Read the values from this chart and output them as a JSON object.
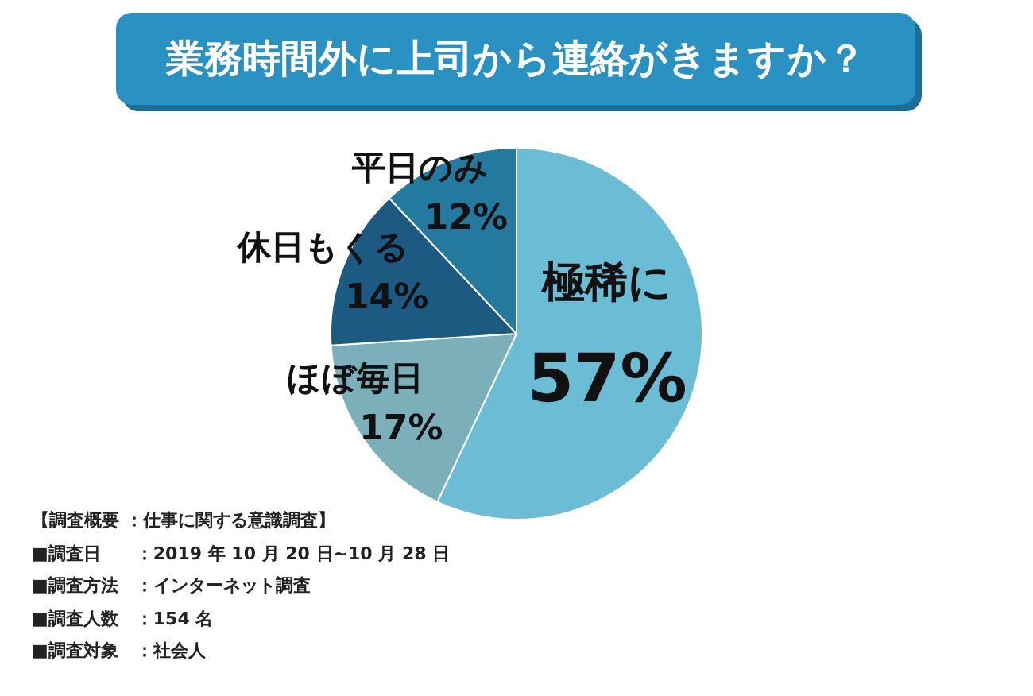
{
  "chart_data": {
    "type": "pie",
    "title": "業務時間外に上司から連絡がきますか？",
    "categories": [
      "極稀に",
      "ほぼ毎日",
      "休日もくる",
      "平日のみ"
    ],
    "values": [
      57,
      17,
      14,
      12
    ],
    "colors": [
      "#6bbdd5",
      "#7bb0ba",
      "#1d5a82",
      "#24799e"
    ],
    "value_labels": [
      "57%",
      "17%",
      "14%",
      "12%"
    ],
    "annotations": [
      "【調査概要 ：仕事に関する意識調査】",
      "■調査日　　：2019 年 10 月 20 日~10 月 28 日",
      "■調査方法　：インターネット調査",
      "■調査人数　：154 名",
      "■調査対象　：社会人"
    ]
  }
}
